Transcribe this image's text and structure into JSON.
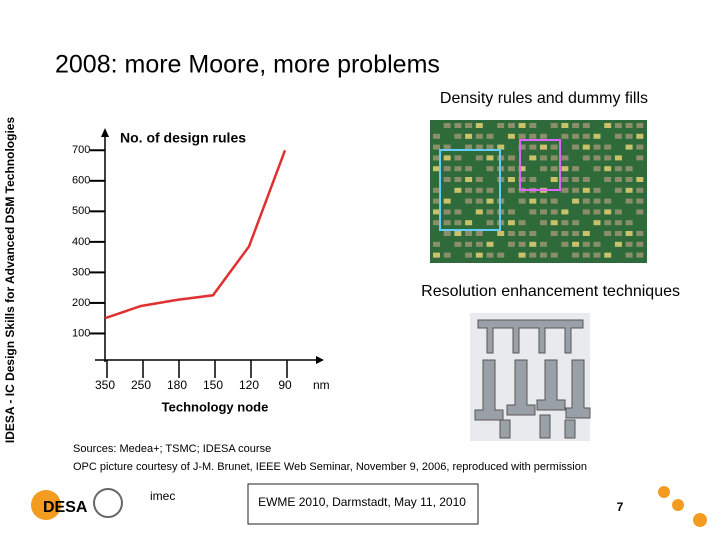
{
  "slide": {
    "title": "2008: more Moore, more problems",
    "side_text": "IDESA - IC Design Skills for Advanced DSM Technologies",
    "density_caption": "Density rules and dummy fills",
    "ret_caption": "Resolution enhancement techniques",
    "sources": [
      "Sources: Medea+; TSMC; IDESA course",
      "OPC picture courtesy of J-M. Brunet, IEEE Web Seminar, November 9, 2006, reproduced with permission"
    ],
    "footer": "EWME 2010, Darmstadt, May 11, 2010",
    "page": "7",
    "logos": [
      "DESA",
      "imec"
    ]
  },
  "chart_data": {
    "type": "line",
    "y_label": "No. of design rules",
    "x_label": "Technology node",
    "x_unit": "nm",
    "categories": [
      "350",
      "250",
      "180",
      "150",
      "120",
      "90"
    ],
    "values": [
      150,
      190,
      210,
      225,
      385,
      700
    ],
    "color": "#e03030",
    "ylim": [
      0,
      750
    ],
    "yticks": [
      100,
      200,
      300,
      400,
      500,
      600,
      700
    ]
  }
}
